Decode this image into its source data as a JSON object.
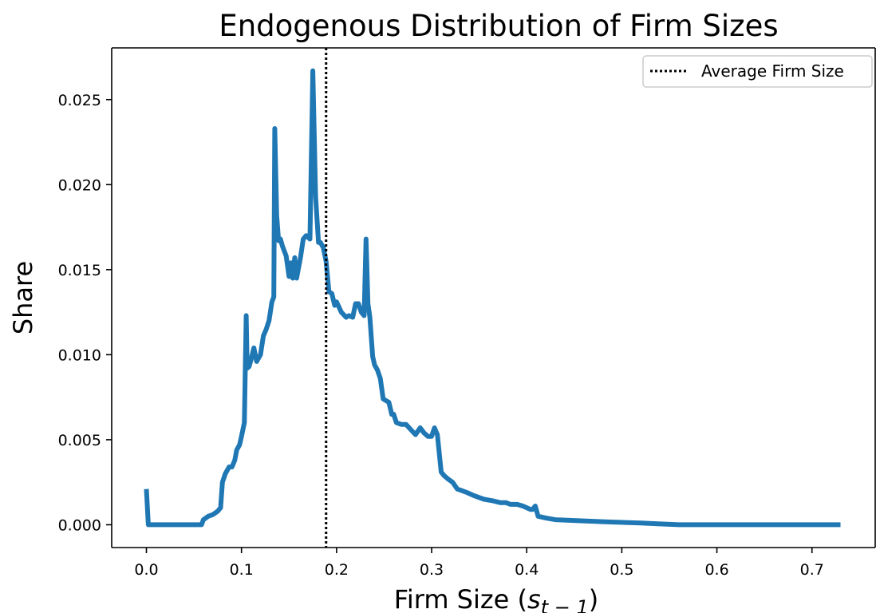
{
  "chart_data": {
    "type": "line",
    "title": "Endogenous Distribution of Firm Sizes",
    "xlabel": {
      "main": "Firm Size (",
      "var": "s",
      "sub": "t − 1",
      "close": ")"
    },
    "ylabel": "Share",
    "xlim": [
      -0.0365,
      0.7665
    ],
    "ylim": [
      -0.00134,
      0.02804
    ],
    "xticks": [
      0.0,
      0.1,
      0.2,
      0.3,
      0.4,
      0.5,
      0.6,
      0.7
    ],
    "xtick_labels": [
      "0.0",
      "0.1",
      "0.2",
      "0.3",
      "0.4",
      "0.5",
      "0.6",
      "0.7"
    ],
    "yticks": [
      0.0,
      0.005,
      0.01,
      0.015,
      0.02,
      0.025
    ],
    "ytick_labels": [
      "0.000",
      "0.005",
      "0.010",
      "0.015",
      "0.020",
      "0.025"
    ],
    "grid": false,
    "legend": {
      "position": "top-right",
      "entries": [
        "Average Firm Size"
      ]
    },
    "average_firm_size": 0.189,
    "series": [
      {
        "color": "#1f77b4",
        "x": [
          0.0,
          0.002,
          0.004,
          0.01,
          0.02,
          0.03,
          0.04,
          0.05,
          0.058,
          0.06,
          0.065,
          0.07,
          0.075,
          0.078,
          0.08,
          0.083,
          0.087,
          0.09,
          0.093,
          0.095,
          0.098,
          0.1,
          0.103,
          0.105,
          0.106,
          0.108,
          0.11,
          0.113,
          0.116,
          0.118,
          0.12,
          0.123,
          0.126,
          0.129,
          0.132,
          0.134,
          0.135,
          0.137,
          0.139,
          0.141,
          0.143,
          0.147,
          0.15,
          0.152,
          0.154,
          0.156,
          0.158,
          0.16,
          0.162,
          0.165,
          0.168,
          0.172,
          0.175,
          0.178,
          0.181,
          0.183,
          0.186,
          0.189,
          0.192,
          0.195,
          0.198,
          0.2,
          0.205,
          0.21,
          0.213,
          0.217,
          0.22,
          0.223,
          0.226,
          0.229,
          0.231,
          0.233,
          0.235,
          0.238,
          0.24,
          0.243,
          0.246,
          0.249,
          0.252,
          0.255,
          0.258,
          0.26,
          0.263,
          0.268,
          0.273,
          0.278,
          0.283,
          0.288,
          0.292,
          0.296,
          0.3,
          0.303,
          0.306,
          0.31,
          0.313,
          0.317,
          0.322,
          0.327,
          0.332,
          0.337,
          0.345,
          0.355,
          0.365,
          0.372,
          0.378,
          0.383,
          0.39,
          0.396,
          0.4,
          0.404,
          0.406,
          0.409,
          0.412,
          0.42,
          0.43,
          0.45,
          0.48,
          0.52,
          0.54,
          0.56,
          0.6,
          0.7,
          0.73
        ],
        "values": [
          0.0021,
          0.0,
          0.0,
          0.0,
          0.0,
          0.0,
          0.0,
          0.0,
          0.0,
          0.0003,
          0.0005,
          0.0006,
          0.0008,
          0.001,
          0.0025,
          0.003,
          0.0034,
          0.0034,
          0.0038,
          0.0044,
          0.0047,
          0.0052,
          0.006,
          0.0123,
          0.0092,
          0.0093,
          0.0097,
          0.0104,
          0.0096,
          0.0098,
          0.01,
          0.0111,
          0.0115,
          0.012,
          0.0131,
          0.0134,
          0.0233,
          0.0182,
          0.0167,
          0.0168,
          0.0164,
          0.0158,
          0.0146,
          0.0154,
          0.0145,
          0.0157,
          0.0145,
          0.0151,
          0.0157,
          0.0168,
          0.017,
          0.0168,
          0.0267,
          0.0193,
          0.0166,
          0.0166,
          0.0163,
          0.0155,
          0.0137,
          0.0136,
          0.0129,
          0.0131,
          0.0125,
          0.0122,
          0.0123,
          0.0122,
          0.013,
          0.013,
          0.0125,
          0.0123,
          0.0168,
          0.013,
          0.0122,
          0.0099,
          0.0094,
          0.0091,
          0.0086,
          0.0074,
          0.0073,
          0.0072,
          0.0065,
          0.0065,
          0.006,
          0.0059,
          0.0059,
          0.0056,
          0.0053,
          0.0057,
          0.0054,
          0.0052,
          0.0052,
          0.0057,
          0.0053,
          0.0031,
          0.0029,
          0.0027,
          0.0025,
          0.0021,
          0.002,
          0.0019,
          0.0017,
          0.0015,
          0.0014,
          0.0013,
          0.0013,
          0.0012,
          0.0012,
          0.0011,
          0.001,
          0.0009,
          0.0009,
          0.0011,
          0.0005,
          0.0004,
          0.0003,
          0.00025,
          0.00018,
          0.0001,
          5e-05,
          0.0,
          0.0,
          0.0,
          0.0
        ]
      }
    ]
  }
}
